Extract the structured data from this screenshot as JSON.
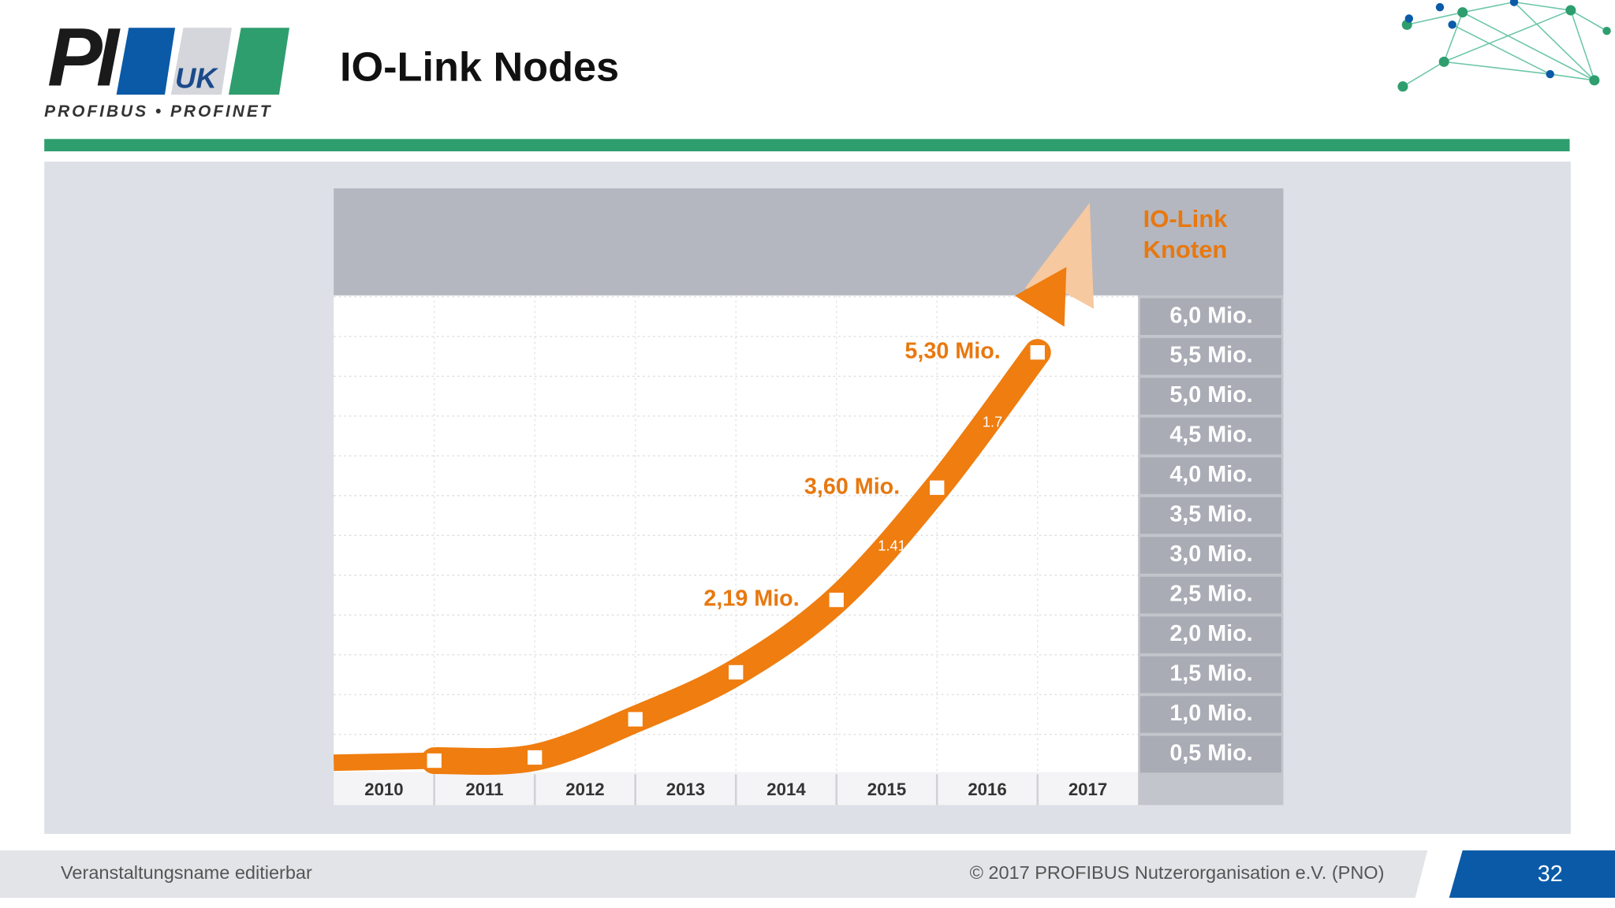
{
  "header": {
    "logo_text": "PI",
    "logo_sub": "UK",
    "logo_tagline": "PROFIBUS • PROFINET",
    "title": "IO-Link Nodes"
  },
  "chart_data": {
    "type": "line",
    "y_label": "IO-Link Knoten",
    "categories": [
      "2010",
      "2011",
      "2012",
      "2013",
      "2014",
      "2015",
      "2016",
      "2017"
    ],
    "values": [
      0.17,
      0.21,
      0.69,
      1.28,
      2.19,
      3.6,
      5.3,
      null
    ],
    "value_labels": [
      null,
      null,
      null,
      null,
      "2,19 Mio.",
      "3,60 Mio.",
      "5,30 Mio.",
      null
    ],
    "color": "#ef7d0f",
    "ylim": [
      0,
      6
    ],
    "yticks": [
      {
        "value": 0.5,
        "label": "0,5 Mio."
      },
      {
        "value": 1,
        "label": "1,0 Mio."
      },
      {
        "value": 1.5,
        "label": "1,5 Mio."
      },
      {
        "value": 2,
        "label": "2,0 Mio."
      },
      {
        "value": 2.5,
        "label": "2,5 Mio."
      },
      {
        "value": 3,
        "label": "3,0 Mio."
      },
      {
        "value": 3.5,
        "label": "3,5 Mio."
      },
      {
        "value": 4,
        "label": "4,0 Mio."
      },
      {
        "value": 4.5,
        "label": "4,5 Mio."
      },
      {
        "value": 5,
        "label": "5,0 Mio."
      },
      {
        "value": 5.5,
        "label": "5,5 Mio."
      },
      {
        "value": 6,
        "label": "6,0 Mio."
      }
    ],
    "grid": true,
    "annotations": [
      "1.7",
      "1.41"
    ]
  },
  "footer": {
    "event": "Veranstaltungsname editierbar",
    "copyright": "© 2017  PROFIBUS Nutzerorganisation e.V. (PNO)",
    "page": "32"
  }
}
